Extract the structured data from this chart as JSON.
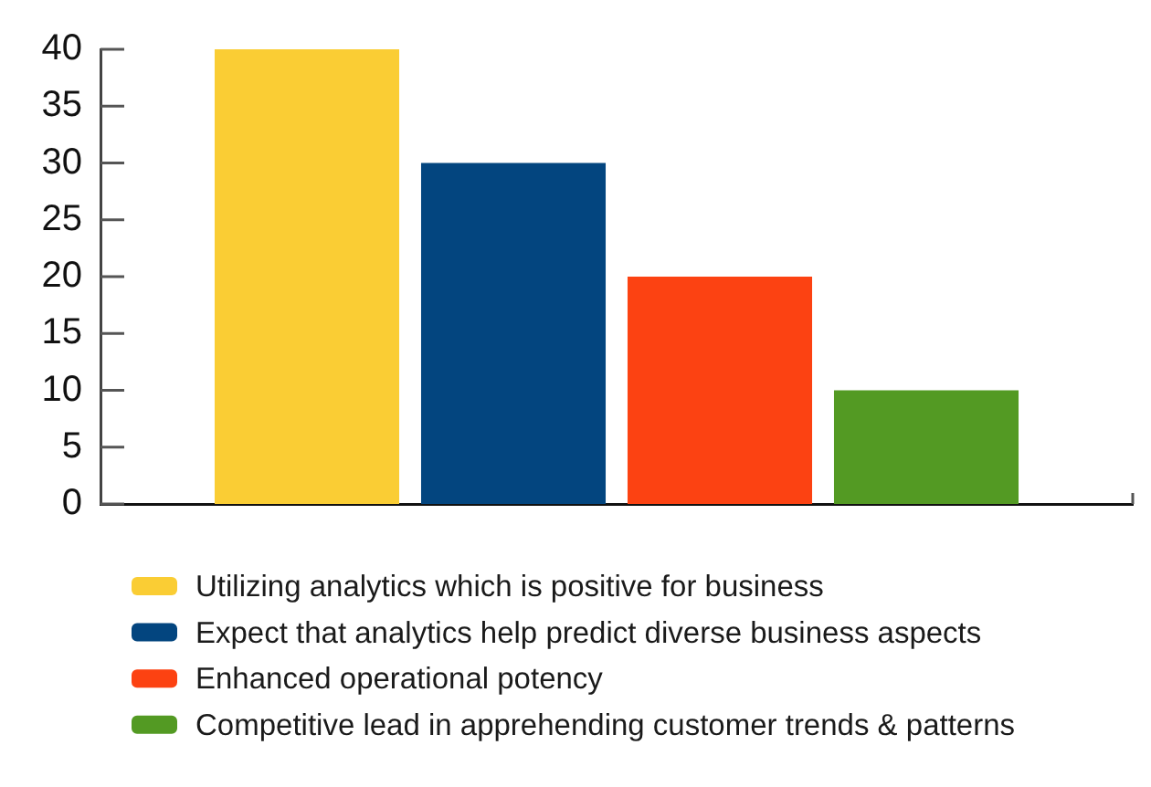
{
  "chart_data": {
    "type": "bar",
    "categories": [
      null
    ],
    "series": [
      {
        "name": "Utilizing analytics which is positive for business",
        "color": "#facd34",
        "values": [
          40
        ]
      },
      {
        "name": "Expect that analytics help predict diverse business aspects",
        "color": "#03457f",
        "values": [
          30
        ]
      },
      {
        "name": "Enhanced operational potency",
        "color": "#fc4212",
        "values": [
          20
        ]
      },
      {
        "name": "Competitive lead in apprehending customer trends & patterns",
        "color": "#539a23",
        "values": [
          10
        ]
      }
    ],
    "ylim": [
      0,
      40
    ],
    "yticks": [
      0,
      5,
      10,
      15,
      20,
      25,
      30,
      35,
      40
    ],
    "legend": "bottom"
  }
}
